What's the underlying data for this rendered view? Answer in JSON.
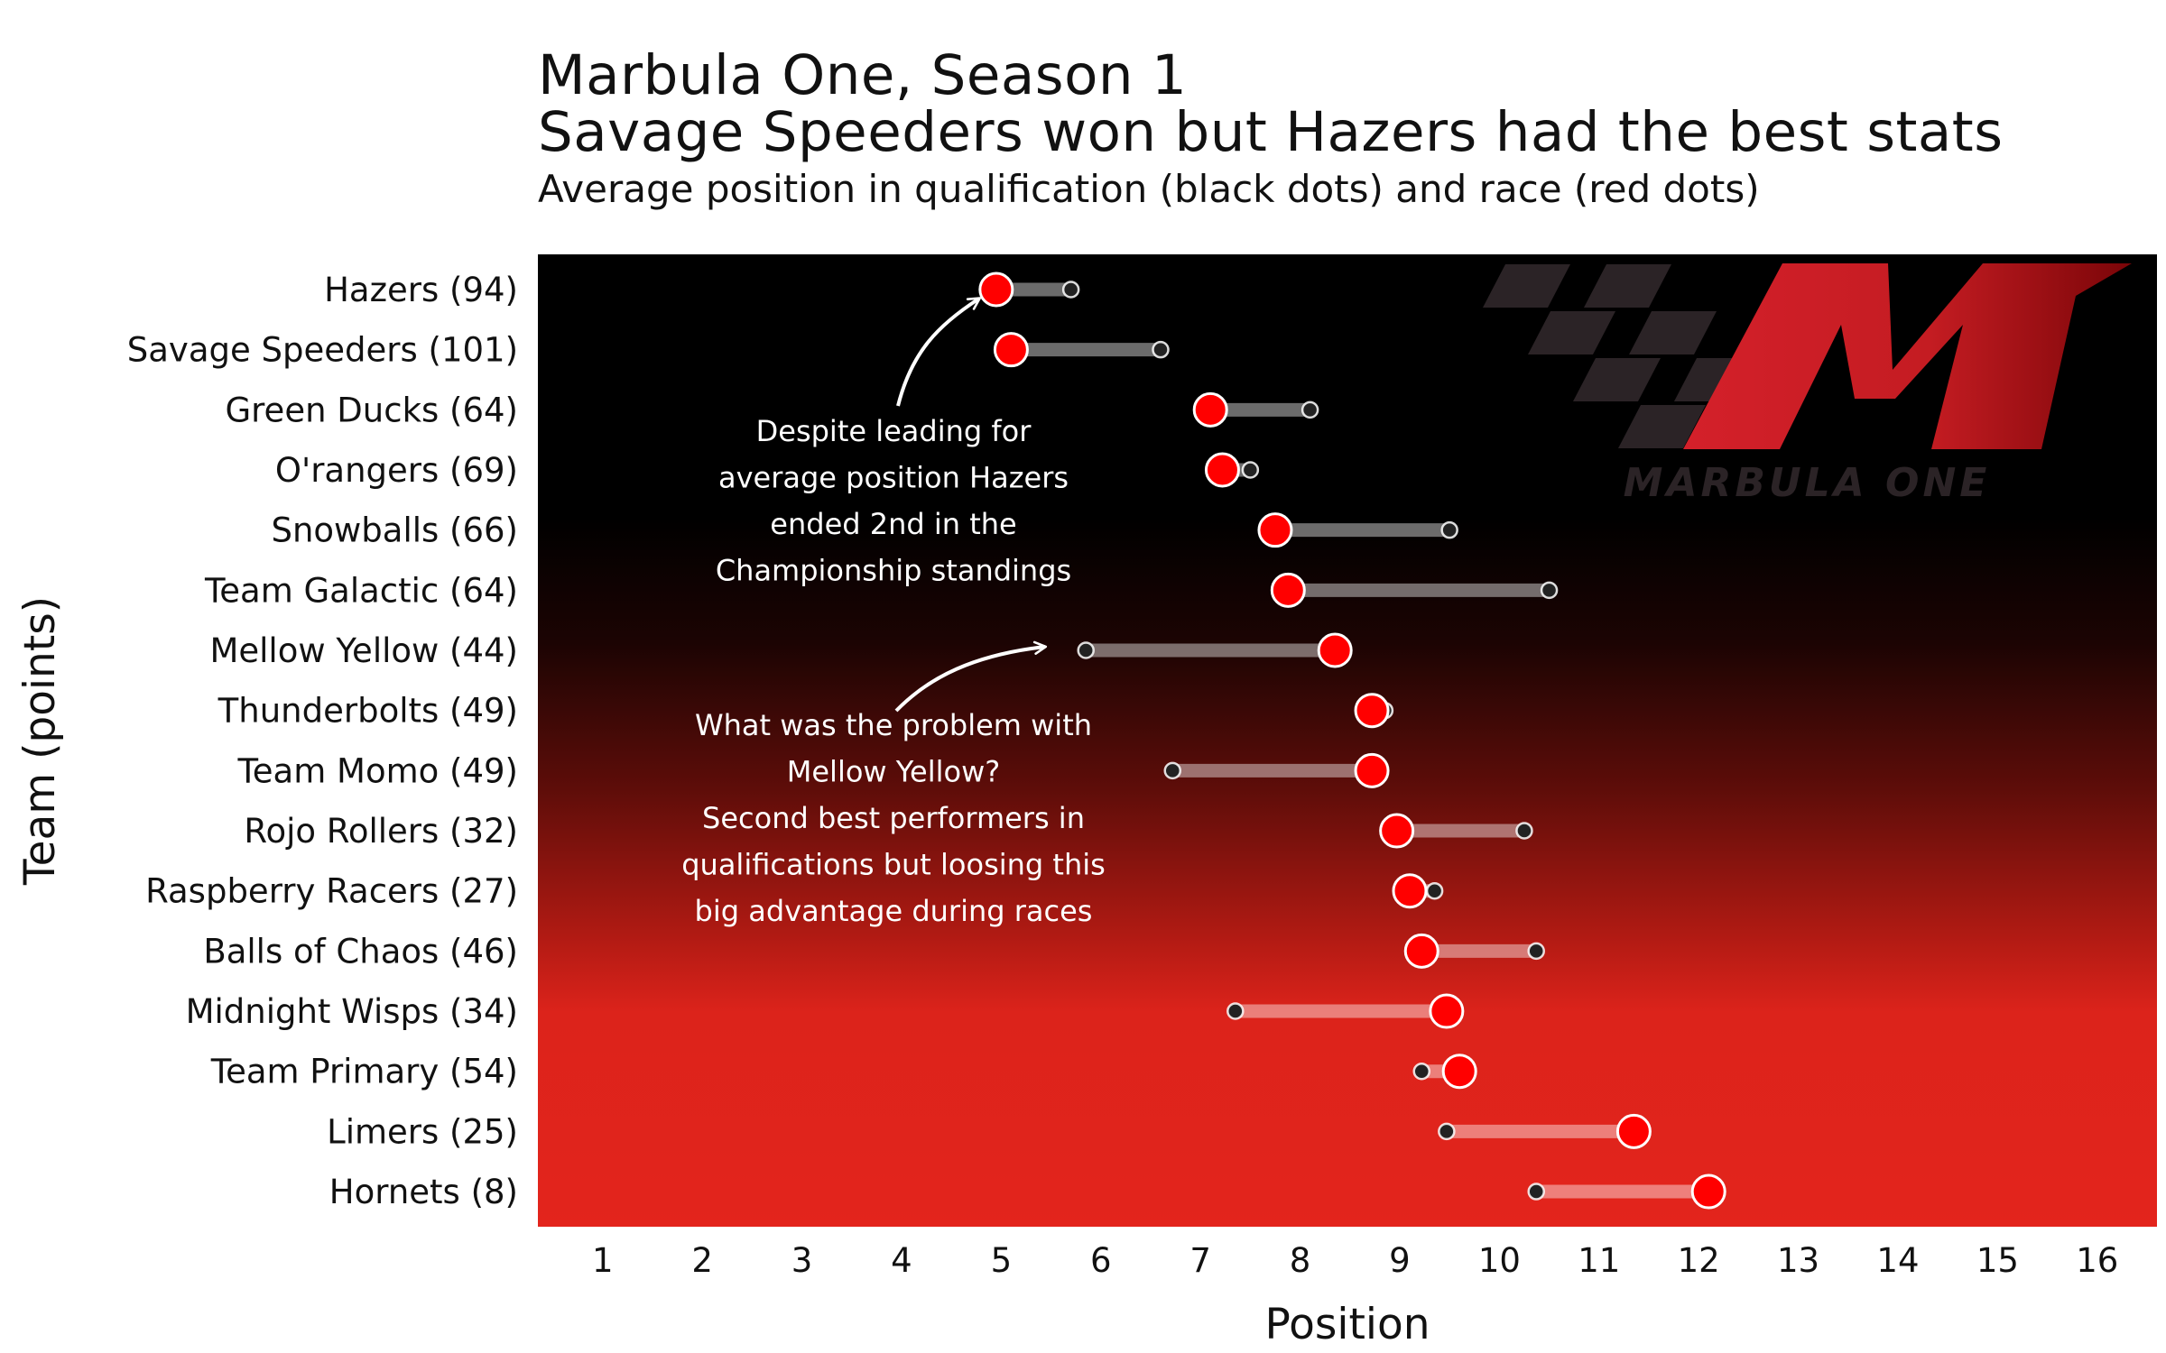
{
  "title_line1": "Marbula One, Season 1",
  "title_line2": "Savage Speeders won but Hazers had the best stats",
  "subtitle": "Average position in qualification (black dots) and race (red dots)",
  "logo": {
    "text": "MARBULA ONE",
    "colors": {
      "dark": "#2b2326",
      "red": "#d4202a",
      "deep": "#7a0508"
    }
  },
  "annotations": [
    {
      "id": "hazers-note",
      "lines": [
        "Despite leading for",
        "average position Hazers",
        "ended 2nd in the",
        "Championship standings"
      ]
    },
    {
      "id": "mellow-note",
      "lines": [
        "What was the problem with",
        "Mellow Yellow?",
        "Second best performers in",
        "qualifications but loosing this",
        "big advantage during races"
      ]
    }
  ],
  "colors": {
    "background_top": "#000000",
    "background_bottom": "#e3231b",
    "race_dot": "#ff0000",
    "qual_dot": "#222222",
    "segment": "#ffffff"
  },
  "chart_data": {
    "type": "dumbbell",
    "xlabel": "Position",
    "ylabel": "Team (points)",
    "xlim": [
      0.35,
      16.6
    ],
    "xticks": [
      1,
      2,
      3,
      4,
      5,
      6,
      7,
      8,
      9,
      10,
      11,
      12,
      13,
      14,
      15,
      16
    ],
    "grid": false,
    "legend": "none",
    "teams": [
      {
        "label": "Hazers (94)",
        "qualification": 5.7,
        "race": 4.95
      },
      {
        "label": "Savage Speeders (101)",
        "qualification": 6.6,
        "race": 5.1
      },
      {
        "label": "Green Ducks (64)",
        "qualification": 8.1,
        "race": 7.1
      },
      {
        "label": "O'rangers (69)",
        "qualification": 7.5,
        "race": 7.22
      },
      {
        "label": "Snowballs (66)",
        "qualification": 9.5,
        "race": 7.75
      },
      {
        "label": "Team Galactic (64)",
        "qualification": 10.5,
        "race": 7.88
      },
      {
        "label": "Mellow Yellow (44)",
        "qualification": 5.85,
        "race": 8.35
      },
      {
        "label": "Thunderbolts (49)",
        "qualification": 8.85,
        "race": 8.72
      },
      {
        "label": "Team Momo (49)",
        "qualification": 6.72,
        "race": 8.72
      },
      {
        "label": "Rojo Rollers (32)",
        "qualification": 10.25,
        "race": 8.97
      },
      {
        "label": "Raspberry Racers (27)",
        "qualification": 9.35,
        "race": 9.1
      },
      {
        "label": "Balls of Chaos (46)",
        "qualification": 10.37,
        "race": 9.22
      },
      {
        "label": "Midnight Wisps (34)",
        "qualification": 7.35,
        "race": 9.47
      },
      {
        "label": "Team Primary (54)",
        "qualification": 9.22,
        "race": 9.6
      },
      {
        "label": "Limers (25)",
        "qualification": 9.47,
        "race": 11.35
      },
      {
        "label": "Hornets (8)",
        "qualification": 10.37,
        "race": 12.1
      }
    ]
  }
}
